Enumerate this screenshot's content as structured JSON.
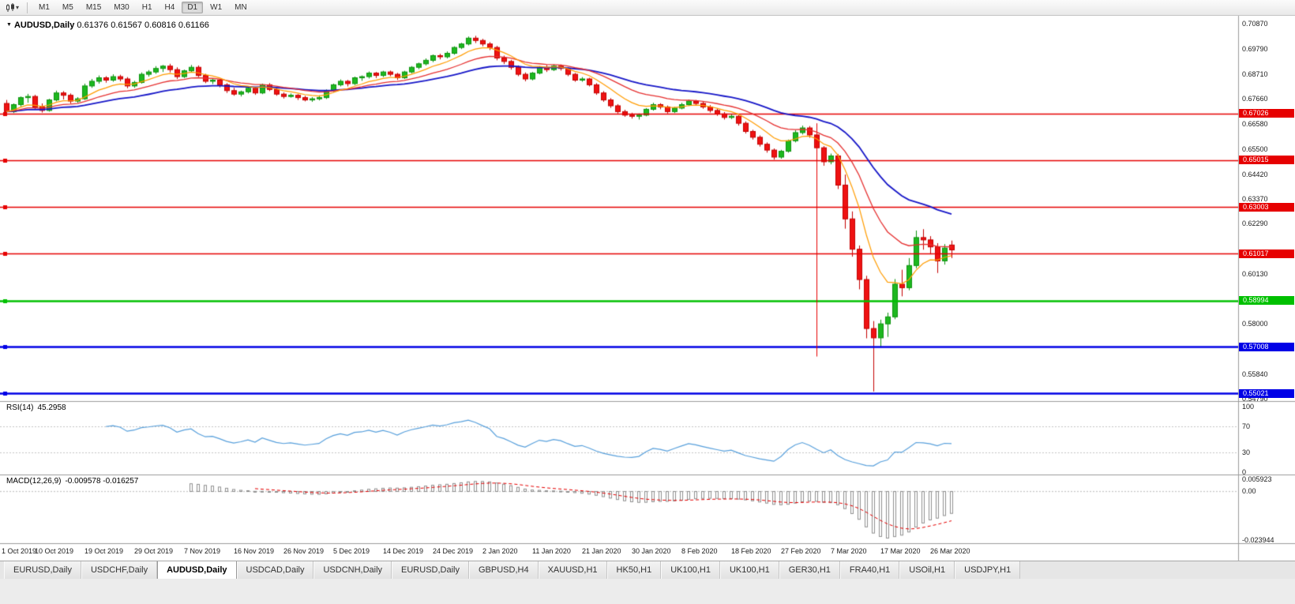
{
  "toolbar": {
    "timeframes": [
      {
        "label": "M1"
      },
      {
        "label": "M5"
      },
      {
        "label": "M15"
      },
      {
        "label": "M30"
      },
      {
        "label": "H1"
      },
      {
        "label": "H4"
      },
      {
        "label": "D1",
        "active": true
      },
      {
        "label": "W1"
      },
      {
        "label": "MN"
      }
    ]
  },
  "chart": {
    "title": "AUDUSD,Daily",
    "ohlc_text": "0.61376 0.61567 0.60816 0.61166"
  },
  "indicators": {
    "rsi_label": "RSI(14)",
    "rsi_value": "45.2958",
    "macd_label": "MACD(12,26,9)",
    "macd_values": "-0.009578 -0.016257"
  },
  "tabs": [
    {
      "label": "EURUSD,Daily"
    },
    {
      "label": "USDCHF,Daily"
    },
    {
      "label": "AUDUSD,Daily",
      "active": true
    },
    {
      "label": "USDCAD,Daily"
    },
    {
      "label": "USDCNH,Daily"
    },
    {
      "label": "EURUSD,Daily"
    },
    {
      "label": "GBPUSD,H4"
    },
    {
      "label": "XAUUSD,H1"
    },
    {
      "label": "HK50,H1"
    },
    {
      "label": "UK100,H1"
    },
    {
      "label": "UK100,H1"
    },
    {
      "label": "GER30,H1"
    },
    {
      "label": "FRA40,H1"
    },
    {
      "label": "USOil,H1"
    },
    {
      "label": "USDJPY,H1"
    }
  ],
  "chart_data": {
    "type": "candlestick",
    "symbol": "AUDUSD",
    "period": "Daily",
    "price_range": {
      "max": 0.7087,
      "min": 0.5479
    },
    "price_axis_ticks": [
      "0.70870",
      "0.69790",
      "0.68710",
      "0.67660",
      "0.66580",
      "0.65500",
      "0.64420",
      "0.63370",
      "0.62290",
      "0.60130",
      "0.58000",
      "0.55840",
      "0.54790"
    ],
    "hlines": [
      {
        "price": 0.67026,
        "label": "0.67026",
        "color": "#e60000",
        "width": 1.5
      },
      {
        "price": 0.65015,
        "label": "0.65015",
        "color": "#e60000",
        "width": 1.5
      },
      {
        "price": 0.63003,
        "label": "0.63003",
        "color": "#e60000",
        "width": 1.5
      },
      {
        "price": 0.61017,
        "label": "0.61017",
        "color": "#e60000",
        "width": 1.5
      },
      {
        "price": 0.58994,
        "label": "0.58994",
        "color": "#00c000",
        "width": 2.5
      },
      {
        "price": 0.57008,
        "label": "0.57008",
        "color": "#0000e6",
        "width": 2.5
      },
      {
        "price": 0.55021,
        "label": "0.55021",
        "color": "#0000e6",
        "width": 2.5
      }
    ],
    "vline": {
      "index": 114,
      "price_from": 0.666,
      "price_to": 0.566,
      "color": "#e60000"
    },
    "moving_averages": [
      {
        "period": 34,
        "method": "ema",
        "color": "#1717c8",
        "width": 1.8
      },
      {
        "period": 17,
        "method": "ema",
        "color": "#e63030",
        "width": 1.3
      },
      {
        "period": 8,
        "method": "ema",
        "color": "#ff9c00",
        "width": 1.2
      }
    ],
    "style": {
      "up_fill": "#1db81f",
      "up_edge": "#0e930f",
      "down_fill": "#ef1212",
      "down_edge": "#c40000"
    },
    "candles": [
      [
        0.6745,
        0.676,
        0.67,
        0.671
      ],
      [
        0.671,
        0.6745,
        0.6704,
        0.674
      ],
      [
        0.674,
        0.6775,
        0.6732,
        0.677
      ],
      [
        0.677,
        0.6786,
        0.6748,
        0.6775
      ],
      [
        0.6775,
        0.6782,
        0.672,
        0.673
      ],
      [
        0.673,
        0.6745,
        0.6706,
        0.6715
      ],
      [
        0.6715,
        0.6765,
        0.671,
        0.676
      ],
      [
        0.676,
        0.68,
        0.6754,
        0.679
      ],
      [
        0.679,
        0.6798,
        0.6762,
        0.678
      ],
      [
        0.678,
        0.6788,
        0.6745,
        0.6755
      ],
      [
        0.6755,
        0.6772,
        0.6748,
        0.6765
      ],
      [
        0.6765,
        0.683,
        0.676,
        0.682
      ],
      [
        0.682,
        0.685,
        0.6812,
        0.684
      ],
      [
        0.684,
        0.6865,
        0.683,
        0.6855
      ],
      [
        0.6855,
        0.6862,
        0.6834,
        0.6845
      ],
      [
        0.6845,
        0.687,
        0.6838,
        0.686
      ],
      [
        0.686,
        0.6868,
        0.684,
        0.685
      ],
      [
        0.685,
        0.6858,
        0.681,
        0.682
      ],
      [
        0.682,
        0.6842,
        0.6812,
        0.6835
      ],
      [
        0.6835,
        0.6878,
        0.683,
        0.687
      ],
      [
        0.687,
        0.6888,
        0.686,
        0.688
      ],
      [
        0.688,
        0.6905,
        0.6872,
        0.6895
      ],
      [
        0.6895,
        0.691,
        0.688,
        0.6905
      ],
      [
        0.6905,
        0.6915,
        0.6878,
        0.689
      ],
      [
        0.689,
        0.69,
        0.685,
        0.686
      ],
      [
        0.686,
        0.689,
        0.6854,
        0.6885
      ],
      [
        0.6885,
        0.691,
        0.6878,
        0.69
      ],
      [
        0.69,
        0.6908,
        0.6858,
        0.6865
      ],
      [
        0.6865,
        0.6872,
        0.6832,
        0.684
      ],
      [
        0.684,
        0.6852,
        0.6828,
        0.6845
      ],
      [
        0.6845,
        0.685,
        0.6814,
        0.6825
      ],
      [
        0.6825,
        0.6832,
        0.679,
        0.68
      ],
      [
        0.68,
        0.6812,
        0.6778,
        0.6785
      ],
      [
        0.6785,
        0.68,
        0.6775,
        0.6795
      ],
      [
        0.6795,
        0.6818,
        0.6788,
        0.681
      ],
      [
        0.681,
        0.6815,
        0.6782,
        0.679
      ],
      [
        0.679,
        0.683,
        0.6785,
        0.6825
      ],
      [
        0.6825,
        0.6832,
        0.6798,
        0.6805
      ],
      [
        0.6805,
        0.6812,
        0.6778,
        0.6785
      ],
      [
        0.6785,
        0.6792,
        0.6766,
        0.6775
      ],
      [
        0.6775,
        0.6788,
        0.677,
        0.678
      ],
      [
        0.678,
        0.6785,
        0.676,
        0.677
      ],
      [
        0.677,
        0.6778,
        0.6754,
        0.676
      ],
      [
        0.676,
        0.6772,
        0.6752,
        0.6765
      ],
      [
        0.6765,
        0.678,
        0.6758,
        0.677
      ],
      [
        0.677,
        0.6805,
        0.6764,
        0.68
      ],
      [
        0.68,
        0.683,
        0.6794,
        0.6825
      ],
      [
        0.6825,
        0.6848,
        0.6818,
        0.684
      ],
      [
        0.684,
        0.6846,
        0.6818,
        0.683
      ],
      [
        0.683,
        0.686,
        0.6824,
        0.6855
      ],
      [
        0.6855,
        0.6865,
        0.6842,
        0.686
      ],
      [
        0.686,
        0.6882,
        0.6852,
        0.6875
      ],
      [
        0.6875,
        0.688,
        0.6854,
        0.6865
      ],
      [
        0.6865,
        0.6885,
        0.6858,
        0.688
      ],
      [
        0.688,
        0.6886,
        0.6862,
        0.687
      ],
      [
        0.687,
        0.6876,
        0.6846,
        0.6855
      ],
      [
        0.6855,
        0.6885,
        0.685,
        0.688
      ],
      [
        0.688,
        0.6905,
        0.6874,
        0.69
      ],
      [
        0.69,
        0.692,
        0.6892,
        0.6915
      ],
      [
        0.6915,
        0.6938,
        0.6908,
        0.693
      ],
      [
        0.693,
        0.6955,
        0.6922,
        0.695
      ],
      [
        0.695,
        0.6958,
        0.6934,
        0.6945
      ],
      [
        0.6945,
        0.6968,
        0.6938,
        0.696
      ],
      [
        0.696,
        0.699,
        0.6954,
        0.6985
      ],
      [
        0.6985,
        0.7005,
        0.6978,
        0.7
      ],
      [
        0.7,
        0.7032,
        0.6994,
        0.7025
      ],
      [
        0.7025,
        0.7035,
        0.7004,
        0.7015
      ],
      [
        0.7015,
        0.7022,
        0.699,
        0.7
      ],
      [
        0.7,
        0.7008,
        0.6974,
        0.6985
      ],
      [
        0.6985,
        0.6992,
        0.693,
        0.694
      ],
      [
        0.694,
        0.695,
        0.6914,
        0.6925
      ],
      [
        0.6925,
        0.6932,
        0.689,
        0.69
      ],
      [
        0.69,
        0.6908,
        0.6862,
        0.687
      ],
      [
        0.687,
        0.6878,
        0.684,
        0.685
      ],
      [
        0.685,
        0.688,
        0.6844,
        0.6875
      ],
      [
        0.6875,
        0.6905,
        0.687,
        0.69
      ],
      [
        0.69,
        0.691,
        0.688,
        0.689
      ],
      [
        0.689,
        0.6912,
        0.6884,
        0.6905
      ],
      [
        0.6905,
        0.6912,
        0.6886,
        0.6895
      ],
      [
        0.6895,
        0.69,
        0.6862,
        0.687
      ],
      [
        0.687,
        0.6876,
        0.6838,
        0.6845
      ],
      [
        0.6845,
        0.6858,
        0.6838,
        0.685
      ],
      [
        0.685,
        0.6855,
        0.6818,
        0.6825
      ],
      [
        0.6825,
        0.6832,
        0.6782,
        0.679
      ],
      [
        0.679,
        0.6798,
        0.6752,
        0.676
      ],
      [
        0.676,
        0.6768,
        0.6726,
        0.6735
      ],
      [
        0.6735,
        0.6742,
        0.6702,
        0.671
      ],
      [
        0.671,
        0.6718,
        0.6688,
        0.6695
      ],
      [
        0.6695,
        0.6705,
        0.668,
        0.669
      ],
      [
        0.669,
        0.6702,
        0.6676,
        0.6695
      ],
      [
        0.6695,
        0.6725,
        0.669,
        0.672
      ],
      [
        0.672,
        0.6748,
        0.6714,
        0.674
      ],
      [
        0.674,
        0.6746,
        0.672,
        0.673
      ],
      [
        0.673,
        0.6736,
        0.6702,
        0.671
      ],
      [
        0.671,
        0.673,
        0.6704,
        0.6725
      ],
      [
        0.6725,
        0.6748,
        0.672,
        0.674
      ],
      [
        0.674,
        0.6762,
        0.6734,
        0.6755
      ],
      [
        0.6755,
        0.676,
        0.6736,
        0.6745
      ],
      [
        0.6745,
        0.6752,
        0.6722,
        0.673
      ],
      [
        0.673,
        0.6738,
        0.6706,
        0.6715
      ],
      [
        0.6715,
        0.6722,
        0.6692,
        0.67
      ],
      [
        0.67,
        0.6708,
        0.6676,
        0.6685
      ],
      [
        0.6685,
        0.6698,
        0.6678,
        0.669
      ],
      [
        0.669,
        0.6695,
        0.665,
        0.666
      ],
      [
        0.666,
        0.6668,
        0.6616,
        0.6625
      ],
      [
        0.6625,
        0.6632,
        0.659,
        0.66
      ],
      [
        0.66,
        0.6608,
        0.656,
        0.657
      ],
      [
        0.657,
        0.6578,
        0.6534,
        0.6545
      ],
      [
        0.6545,
        0.6552,
        0.6504,
        0.6515
      ],
      [
        0.6515,
        0.6546,
        0.6508,
        0.654
      ],
      [
        0.654,
        0.659,
        0.6534,
        0.6585
      ],
      [
        0.6585,
        0.663,
        0.6578,
        0.662
      ],
      [
        0.662,
        0.665,
        0.6612,
        0.664
      ],
      [
        0.664,
        0.6648,
        0.6598,
        0.661
      ],
      [
        0.661,
        0.6622,
        0.6305,
        0.6555
      ],
      [
        0.6555,
        0.6562,
        0.6478,
        0.6495
      ],
      [
        0.6495,
        0.653,
        0.6484,
        0.652
      ],
      [
        0.652,
        0.6528,
        0.6378,
        0.6395
      ],
      [
        0.6395,
        0.644,
        0.6208,
        0.625
      ],
      [
        0.625,
        0.6282,
        0.6088,
        0.612
      ],
      [
        0.612,
        0.6136,
        0.5948,
        0.599
      ],
      [
        0.599,
        0.6006,
        0.5738,
        0.578
      ],
      [
        0.578,
        0.5812,
        0.551,
        0.574
      ],
      [
        0.574,
        0.5818,
        0.5698,
        0.58
      ],
      [
        0.58,
        0.5848,
        0.5744,
        0.583
      ],
      [
        0.583,
        0.5992,
        0.582,
        0.597
      ],
      [
        0.597,
        0.6032,
        0.5918,
        0.5955
      ],
      [
        0.5955,
        0.6082,
        0.5944,
        0.605
      ],
      [
        0.605,
        0.62,
        0.6038,
        0.617
      ],
      [
        0.617,
        0.6206,
        0.6118,
        0.616
      ],
      [
        0.616,
        0.6176,
        0.6098,
        0.613
      ],
      [
        0.613,
        0.6146,
        0.6018,
        0.607
      ],
      [
        0.607,
        0.6142,
        0.6054,
        0.6125
      ],
      [
        0.6138,
        0.6157,
        0.6082,
        0.6117
      ]
    ],
    "rsi": {
      "period": 14,
      "levels": [
        70,
        30
      ],
      "scale_labels": [
        "100",
        "70",
        "30",
        "0"
      ],
      "color": "#58a0dc",
      "range": [
        0,
        100
      ]
    },
    "macd": {
      "fast": 12,
      "slow": 26,
      "signal": 9,
      "scale_labels": [
        "0.005923",
        "0.00",
        "-0.023944"
      ],
      "range": [
        -0.023944,
        0.005923
      ],
      "hist_color": "#8f8f8f",
      "signal_color": "#e60000"
    },
    "date_labels": [
      "1 Oct 2019",
      "10 Oct 2019",
      "19 Oct 2019",
      "29 Oct 2019",
      "7 Nov 2019",
      "16 Nov 2019",
      "26 Nov 2019",
      "5 Dec 2019",
      "14 Dec 2019",
      "24 Dec 2019",
      "2 Jan 2020",
      "11 Jan 2020",
      "21 Jan 2020",
      "30 Jan 2020",
      "8 Feb 2020",
      "18 Feb 2020",
      "27 Feb 2020",
      "7 Mar 2020",
      "17 Mar 2020",
      "26 Mar 2020"
    ]
  }
}
